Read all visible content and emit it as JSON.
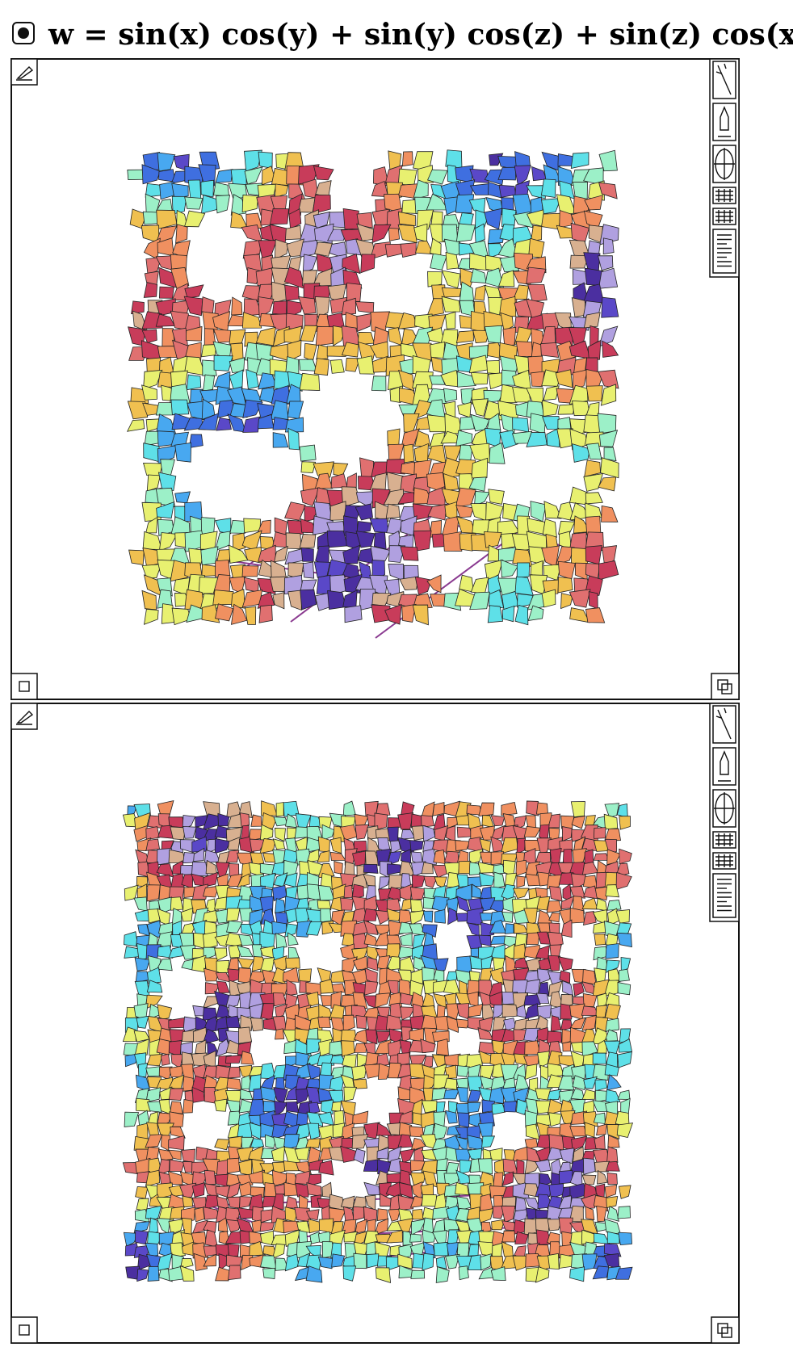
{
  "formula": "w = sin(x) cos(y) + sin(y) cos(z) + sin(z) cos(x)"
}
